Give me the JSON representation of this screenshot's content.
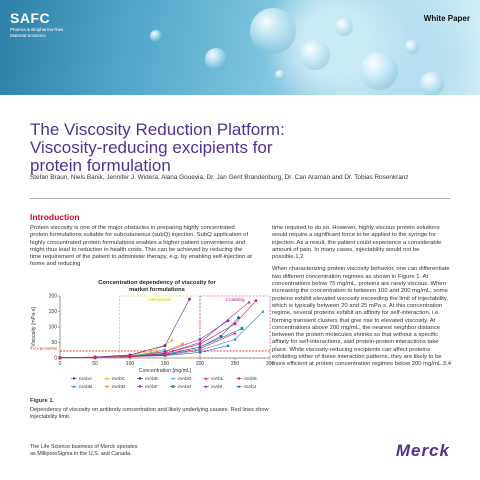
{
  "header": {
    "brand_name": "SAFC",
    "brand_sub": "Pharma & Biopharma Raw Material Solutions",
    "doc_type": "White Paper"
  },
  "article": {
    "title": "The Viscosity Reduction Platform: Viscosity-reducing excipients for protein formulation",
    "authors": "Stefan Braun, Niels Banik, Jennifer J. Widera, Alana Gouevia, Dr. Jan Gerit Brandenburg, Dr. Can Araman and Dr. Tobias Rosenkranz"
  },
  "intro": {
    "heading": "Introduction",
    "para1": "Protein viscosity is one of the major obstacles in preparing highly concentrated protein formulations suitable for subcutaneous (subQ) injection. SubQ application of highly concentrated protein formulations enables a higher patient convenience and might thus lead to reduction in health costs. This can be achieved by reducing the time requirement of the patient to administer therapy, e.g. by enabling self-injection at home and reducing",
    "right1": "time required to do so. However, highly viscous protein solutions would require a significant force to be applied to the syringe for injection. As a result, the patient could experience a considerable amount of pain. In many cases, injectability would not be possible.1,2",
    "right2": "When characterizing protein viscosity behavior, one can differentiate two different concentration regimes as shown in Figure 1. At concentrations below 75 mg/mL, proteins are rarely viscous. When increasing the concentration to between 100 and 200 mg/mL, some proteins exhibit elevated viscosity exceeding the limit of injectability, which is typically between 20 and 25 mPa·s. At this concentration regime, several proteins exhibit an affinity for self-interaction, i.e. forming transient clusters that give rise to elevated viscosity. At concentrations above 200 mg/mL, the nearest neighbor distance between the protein molecules shrinks so that without a specific affinity for self-interactions, said protein-protein interactions take place. While viscosity-reducing excipients can affect proteins exhibiting either of these interaction patterns, they are likely to be more efficient at protein concentration regimes below 200 mg/mL.3,4"
  },
  "figure": {
    "label": "Figure 1.",
    "caption": "Dependency of viscosity on antibody concentration and likely underlying causes. Red lines show injectability limit."
  },
  "footer": {
    "note": "The Life Science business of Merck operates as MilliporeSigma in the U.S. and Canada.",
    "logo": "Merck"
  },
  "chart_data": {
    "type": "scatter",
    "title": "Concentration dependency of viscosity for market formulations",
    "xlabel": "Concentration [mg/mL]",
    "ylabel": "Viscosity [mPa·s]",
    "xlim": [
      0,
      300
    ],
    "ylim": [
      0,
      200
    ],
    "xticks": [
      0,
      50,
      100,
      150,
      200,
      250,
      300
    ],
    "yticks": [
      0,
      50,
      100,
      150,
      200
    ],
    "limit_label": "Limit of injectability",
    "limit_values": [
      20,
      25
    ],
    "regions": [
      {
        "label": "Interactions",
        "x0": 85,
        "x1": 200,
        "color": "#e6b800"
      },
      {
        "label": "Crowding",
        "x0": 200,
        "x1": 300,
        "color": "#c2187a"
      }
    ],
    "series": [
      {
        "name": "mAbA",
        "color": "#1f4e9e",
        "marker": "circle",
        "x": [
          0,
          50,
          100,
          150,
          200,
          230,
          255
        ],
        "y": [
          1,
          2,
          5,
          12,
          35,
          70,
          130
        ]
      },
      {
        "name": "mAbB",
        "color": "#2b7bd6",
        "marker": "triangle",
        "x": [
          0,
          50,
          100,
          150,
          200,
          250,
          290
        ],
        "y": [
          1,
          2,
          4,
          9,
          25,
          60,
          150
        ]
      },
      {
        "name": "mAbC",
        "color": "#f0b400",
        "marker": "triangle",
        "x": [
          0,
          50,
          100,
          130,
          150,
          160
        ],
        "y": [
          1,
          3,
          10,
          22,
          40,
          58
        ]
      },
      {
        "name": "mAbD",
        "color": "#f5a623",
        "marker": "square",
        "x": [
          0,
          50,
          100,
          150,
          175
        ],
        "y": [
          1,
          3,
          8,
          22,
          45
        ]
      },
      {
        "name": "mAbE",
        "color": "#6a1b9a",
        "marker": "circle",
        "x": [
          0,
          50,
          100,
          150,
          185
        ],
        "y": [
          1,
          3,
          10,
          40,
          190
        ]
      },
      {
        "name": "mAbF",
        "color": "#9c27b0",
        "marker": "circle",
        "x": [
          0,
          50,
          100,
          150,
          200,
          240
        ],
        "y": [
          1,
          2,
          6,
          20,
          60,
          120
        ]
      },
      {
        "name": "mAbG",
        "color": "#26c6da",
        "marker": "triangle",
        "x": [
          0,
          50,
          100,
          125,
          150
        ],
        "y": [
          1,
          2,
          6,
          14,
          28
        ]
      },
      {
        "name": "mAbH",
        "color": "#00838f",
        "marker": "square",
        "x": [
          0,
          50,
          100,
          150,
          200,
          260
        ],
        "y": [
          1,
          2,
          5,
          12,
          35,
          95
        ]
      },
      {
        "name": "mAbI",
        "color": "#8e24aa",
        "marker": "triangle",
        "x": [
          0,
          50,
          100,
          150,
          200,
          270
        ],
        "y": [
          1,
          2,
          5,
          15,
          50,
          180
        ]
      },
      {
        "name": "mAbJ",
        "color": "#1565c0",
        "marker": "triangle",
        "x": [
          0,
          50,
          100,
          150,
          200,
          240
        ],
        "y": [
          1,
          2,
          4,
          8,
          18,
          40
        ]
      },
      {
        "name": "mAbK",
        "color": "#d81b60",
        "marker": "circle",
        "x": [
          0,
          50,
          100,
          150,
          200,
          250,
          280
        ],
        "y": [
          1,
          2,
          5,
          15,
          45,
          110,
          185
        ]
      },
      {
        "name": "mAbL",
        "color": "#e91e63",
        "marker": "triangle",
        "x": [
          0,
          50,
          100,
          150,
          200,
          250
        ],
        "y": [
          1,
          2,
          4,
          10,
          30,
          80
        ]
      }
    ],
    "legend_order": [
      "mAbA",
      "mAbC",
      "mAbE",
      "mAbG",
      "mAbL",
      "mAbK",
      "mAbB",
      "mAbD",
      "mAbF",
      "mAbH",
      "mAbI",
      "mAbJ"
    ],
    "legend_placement": "bottom"
  }
}
